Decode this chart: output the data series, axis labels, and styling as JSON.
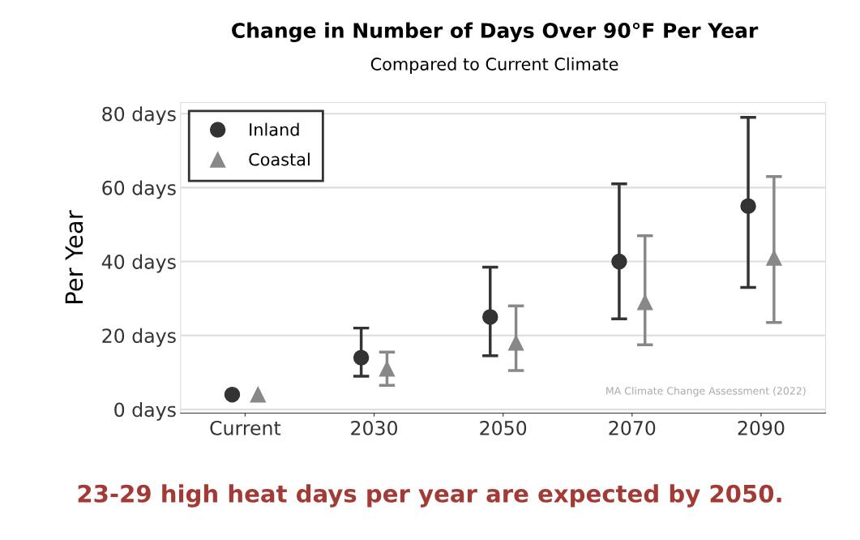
{
  "chart_data": {
    "type": "scatter",
    "title": "Change in Number of Days Over 90°F Per Year",
    "subtitle": "Compared to Current Climate",
    "ylabel": "Per Year",
    "categories": [
      "Current",
      "2030",
      "2050",
      "2070",
      "2090"
    ],
    "series": [
      {
        "name": "Inland",
        "color": "#333333",
        "marker": "circle",
        "values": [
          4,
          14,
          25,
          40,
          55
        ],
        "errors": [
          null,
          [
            9,
            22
          ],
          [
            14.5,
            38.5
          ],
          [
            24.5,
            61
          ],
          [
            33,
            79
          ]
        ]
      },
      {
        "name": "Coastal",
        "color": "#888888",
        "marker": "triangle",
        "values": [
          4,
          11,
          18,
          29,
          41
        ],
        "errors": [
          null,
          [
            6.5,
            15.5
          ],
          [
            10.5,
            28
          ],
          [
            17.5,
            47
          ],
          [
            23.5,
            63
          ]
        ]
      }
    ],
    "ylim": [
      -1,
      83
    ],
    "yticks": [
      {
        "value": 0,
        "label": "0 days"
      },
      {
        "value": 20,
        "label": "20 days"
      },
      {
        "value": 40,
        "label": "40 days"
      },
      {
        "value": 60,
        "label": "60 days"
      },
      {
        "value": 80,
        "label": "80 days"
      }
    ],
    "grid": "y",
    "legend": "top left",
    "annotations": [
      "MA Climate Change Assessment (2022)",
      "23-29 high heat days per year are expected by 2050."
    ]
  }
}
